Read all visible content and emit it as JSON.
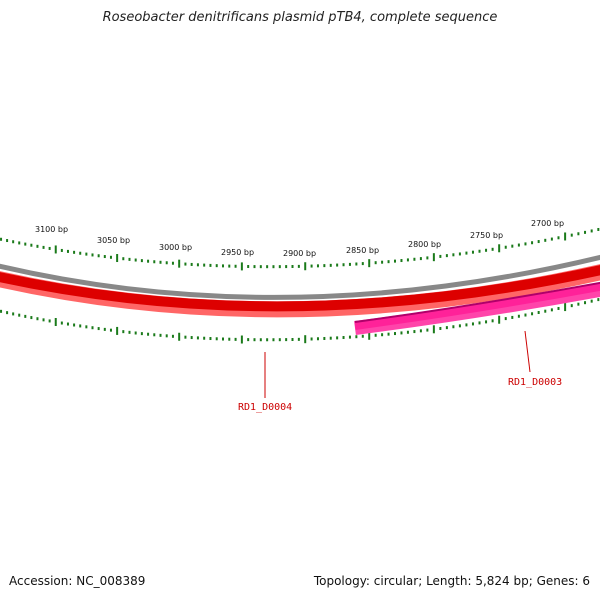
{
  "title": "Roseobacter denitrificans plasmid pTB4, complete sequence",
  "accession": "Accession: NC_008389",
  "summary": "Topology: circular; Length: 5,824 bp; Genes: 6",
  "colors": {
    "backbone": "#888888",
    "gene_dark": "#dd0000",
    "gene_light": "#ff6666",
    "gene_pink": "#ff2299",
    "gene_pink_dark": "#b0006a",
    "tick": "#1a7a1a",
    "label": "#cc0000"
  },
  "scale_labels": [
    "3100 bp",
    "3050 bp",
    "3000 bp",
    "2950 bp",
    "2900 bp",
    "2850 bp",
    "2800 bp",
    "2750 bp",
    "2700 bp"
  ],
  "genes": [
    {
      "name": "RD1_D0004"
    },
    {
      "name": "RD1_D0003"
    }
  ]
}
